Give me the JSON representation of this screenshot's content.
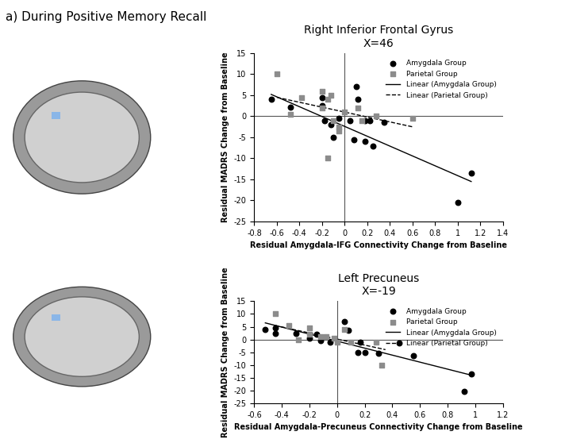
{
  "panel_label": "a) During Positive Memory Recall",
  "chart_data": [
    {
      "type": "scatter",
      "title": "Right Inferior Frontal Gyrus",
      "subtitle": "X=46",
      "x_label": "Residual Amygdala-IFG Connectivity Change from Baseline",
      "y_label": "Residual MADRS Change from Baseline",
      "xlim": [
        -0.8,
        1.4
      ],
      "xticks": [
        -0.8,
        -0.6,
        -0.4,
        -0.2,
        0,
        0.2,
        0.4,
        0.6,
        0.8,
        1,
        1.2,
        1.4
      ],
      "ylim": [
        -25,
        15
      ],
      "yticks": [
        -25,
        -20,
        -15,
        -10,
        -5,
        0,
        5,
        10,
        15
      ],
      "legend": "upper right",
      "series": [
        {
          "name": "Amygdala Group",
          "type": "scatter",
          "marker": "circle",
          "color": "#000000",
          "x": [
            -0.65,
            -0.48,
            -0.2,
            -0.2,
            -0.18,
            -0.12,
            -0.1,
            -0.05,
            0.08,
            0.1,
            0.12,
            0.18,
            0.18,
            0.22,
            0.25,
            0.35,
            1.0,
            1.12,
            0.05
          ],
          "values": [
            4,
            2.2,
            4.5,
            2.5,
            -1,
            -2,
            -5,
            -0.5,
            -5.5,
            7,
            4,
            -1,
            -6,
            -1,
            -7,
            -1.5,
            -20.5,
            -13.5,
            -1
          ]
        },
        {
          "name": "Parietal Group",
          "type": "scatter",
          "marker": "square",
          "color": "#8c8c8c",
          "x": [
            -0.6,
            -0.48,
            -0.38,
            -0.2,
            -0.2,
            -0.15,
            -0.12,
            -0.1,
            -0.05,
            -0.05,
            0.0,
            0.12,
            0.15,
            0.28,
            0.6,
            -0.15
          ],
          "values": [
            10,
            0.5,
            4.5,
            6,
            2,
            -10,
            5,
            -1,
            -2.5,
            -3.5,
            1,
            2,
            -1,
            0,
            -0.5,
            4
          ]
        },
        {
          "name": "Linear (Amygdala Group)",
          "type": "line",
          "line_style": "solid",
          "color": "#000000",
          "x": [
            -0.65,
            1.12
          ],
          "values": [
            5.2,
            -15.5
          ]
        },
        {
          "name": "Linear (Parietal Group)",
          "type": "line",
          "line_style": "dashed",
          "color": "#000000",
          "x": [
            -0.6,
            0.6
          ],
          "values": [
            4.5,
            -2.5
          ]
        }
      ]
    },
    {
      "type": "scatter",
      "title": "Left Precuneus",
      "subtitle": "X=-19",
      "x_label": "Residual Amygdala-Precuneus Connectivity Change from Baseline",
      "y_label": "Residual MADRS Change from Baseline",
      "xlim": [
        -0.6,
        1.2
      ],
      "xticks": [
        -0.6,
        -0.4,
        -0.2,
        0,
        0.2,
        0.4,
        0.6,
        0.8,
        1,
        1.2
      ],
      "ylim": [
        -25,
        15
      ],
      "yticks": [
        -25,
        -20,
        -15,
        -10,
        -5,
        0,
        5,
        10,
        15
      ],
      "legend": "upper right",
      "series": [
        {
          "name": "Amygdala Group",
          "type": "scatter",
          "marker": "circle",
          "color": "#000000",
          "x": [
            -0.52,
            -0.45,
            -0.45,
            -0.3,
            -0.2,
            -0.15,
            -0.12,
            -0.05,
            0.05,
            0.08,
            0.15,
            0.17,
            0.2,
            0.3,
            0.45,
            0.55,
            0.92,
            0.97
          ],
          "values": [
            4,
            4.5,
            2.5,
            2.5,
            0.5,
            2,
            -0.5,
            -1,
            7,
            3.5,
            -5,
            -1,
            -5,
            -5.5,
            -1.5,
            -6.5,
            -20.5,
            -13.5
          ]
        },
        {
          "name": "Parietal Group",
          "type": "scatter",
          "marker": "square",
          "color": "#8c8c8c",
          "x": [
            -0.45,
            -0.35,
            -0.28,
            -0.2,
            -0.2,
            -0.12,
            -0.08,
            0.0,
            0.05,
            0.1,
            0.28,
            0.32,
            -0.02
          ],
          "values": [
            10,
            5.5,
            0,
            4.5,
            2,
            1,
            1,
            -1,
            4,
            -1,
            -1,
            -10,
            0.5
          ]
        },
        {
          "name": "Linear (Amygdala Group)",
          "type": "line",
          "line_style": "solid",
          "color": "#000000",
          "x": [
            -0.52,
            0.97
          ],
          "values": [
            6.5,
            -14
          ]
        },
        {
          "name": "Linear (Parietal Group)",
          "type": "line",
          "line_style": "dashed",
          "color": "#000000",
          "x": [
            -0.45,
            0.35
          ],
          "values": [
            5.5,
            -4
          ]
        }
      ]
    }
  ]
}
